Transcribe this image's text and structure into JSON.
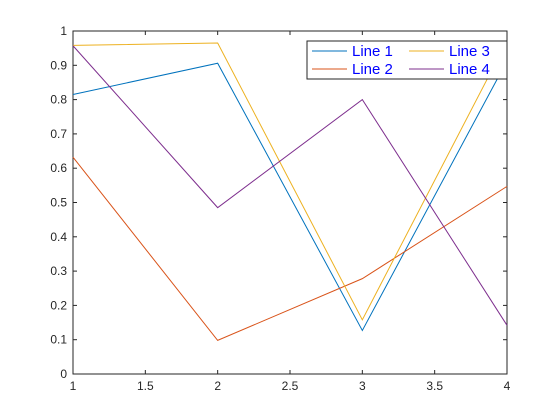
{
  "chart_data": {
    "type": "line",
    "x": [
      1,
      2,
      3,
      4
    ],
    "xlim": [
      1,
      4
    ],
    "ylim": [
      0,
      1
    ],
    "xticks": [
      1,
      1.5,
      2,
      2.5,
      3,
      3.5,
      4
    ],
    "yticks": [
      0,
      0.1,
      0.2,
      0.3,
      0.4,
      0.5,
      0.6,
      0.7,
      0.8,
      0.9,
      1
    ],
    "xtick_labels": [
      "1",
      "1.5",
      "2",
      "2.5",
      "3",
      "3.5",
      "4"
    ],
    "ytick_labels": [
      "0",
      "0.1",
      "0.2",
      "0.3",
      "0.4",
      "0.5",
      "0.6",
      "0.7",
      "0.8",
      "0.9",
      "1"
    ],
    "grid": false,
    "legend": {
      "placement": "top-right",
      "columns": 2,
      "text_color": "#0000ff"
    },
    "series": [
      {
        "name": "Line 1",
        "color": "#0072bd",
        "values": [
          0.815,
          0.906,
          0.127,
          0.913
        ]
      },
      {
        "name": "Line 2",
        "color": "#d95319",
        "values": [
          0.632,
          0.098,
          0.278,
          0.547
        ]
      },
      {
        "name": "Line 3",
        "color": "#edb120",
        "values": [
          0.958,
          0.965,
          0.158,
          0.971
        ]
      },
      {
        "name": "Line 4",
        "color": "#7e2f8e",
        "values": [
          0.957,
          0.485,
          0.8,
          0.142
        ]
      }
    ]
  }
}
